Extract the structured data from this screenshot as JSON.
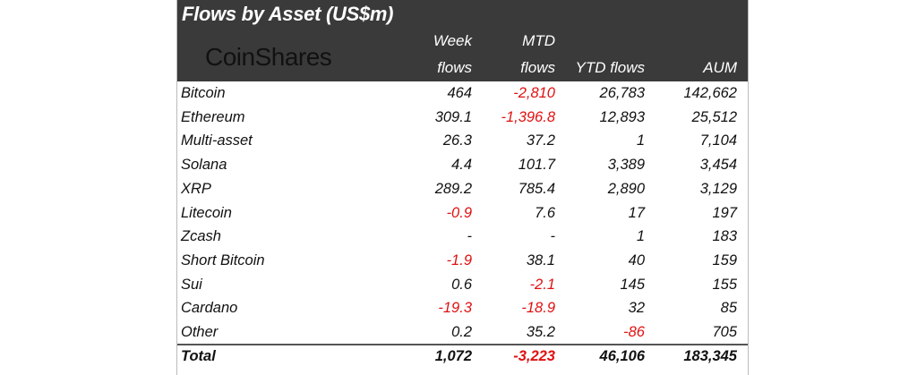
{
  "chart_data": {
    "type": "table",
    "title": "Flows by Asset (US$m)",
    "logo": "CoinShares",
    "columns": [
      {
        "line1": "Week",
        "line2": "flows"
      },
      {
        "line1": "MTD",
        "line2": "flows"
      },
      {
        "line1": "",
        "line2": "YTD flows"
      },
      {
        "line1": "",
        "line2": "AUM"
      }
    ],
    "rows": [
      {
        "asset": "Bitcoin",
        "values": [
          "464",
          "-2,810",
          "26,783",
          "142,662"
        ]
      },
      {
        "asset": "Ethereum",
        "values": [
          "309.1",
          "-1,396.8",
          "12,893",
          "25,512"
        ]
      },
      {
        "asset": "Multi-asset",
        "values": [
          "26.3",
          "37.2",
          "1",
          "7,104"
        ]
      },
      {
        "asset": "Solana",
        "values": [
          "4.4",
          "101.7",
          "3,389",
          "3,454"
        ]
      },
      {
        "asset": "XRP",
        "values": [
          "289.2",
          "785.4",
          "2,890",
          "3,129"
        ]
      },
      {
        "asset": "Litecoin",
        "values": [
          "-0.9",
          "7.6",
          "17",
          "197"
        ]
      },
      {
        "asset": "Zcash",
        "values": [
          "-",
          "-",
          "1",
          "183"
        ]
      },
      {
        "asset": "Short Bitcoin",
        "values": [
          "-1.9",
          "38.1",
          "40",
          "159"
        ]
      },
      {
        "asset": "Sui",
        "values": [
          "0.6",
          "-2.1",
          "145",
          "155"
        ]
      },
      {
        "asset": "Cardano",
        "values": [
          "-19.3",
          "-18.9",
          "32",
          "85"
        ]
      },
      {
        "asset": "Other",
        "values": [
          "0.2",
          "35.2",
          "-86",
          "705"
        ]
      }
    ],
    "total": {
      "asset": "Total",
      "values": [
        "1,072",
        "-3,223",
        "46,106",
        "183,345"
      ]
    },
    "colors": {
      "header_bg": "#3a3a3a",
      "negative": "#e01010",
      "text": "#111111"
    }
  }
}
